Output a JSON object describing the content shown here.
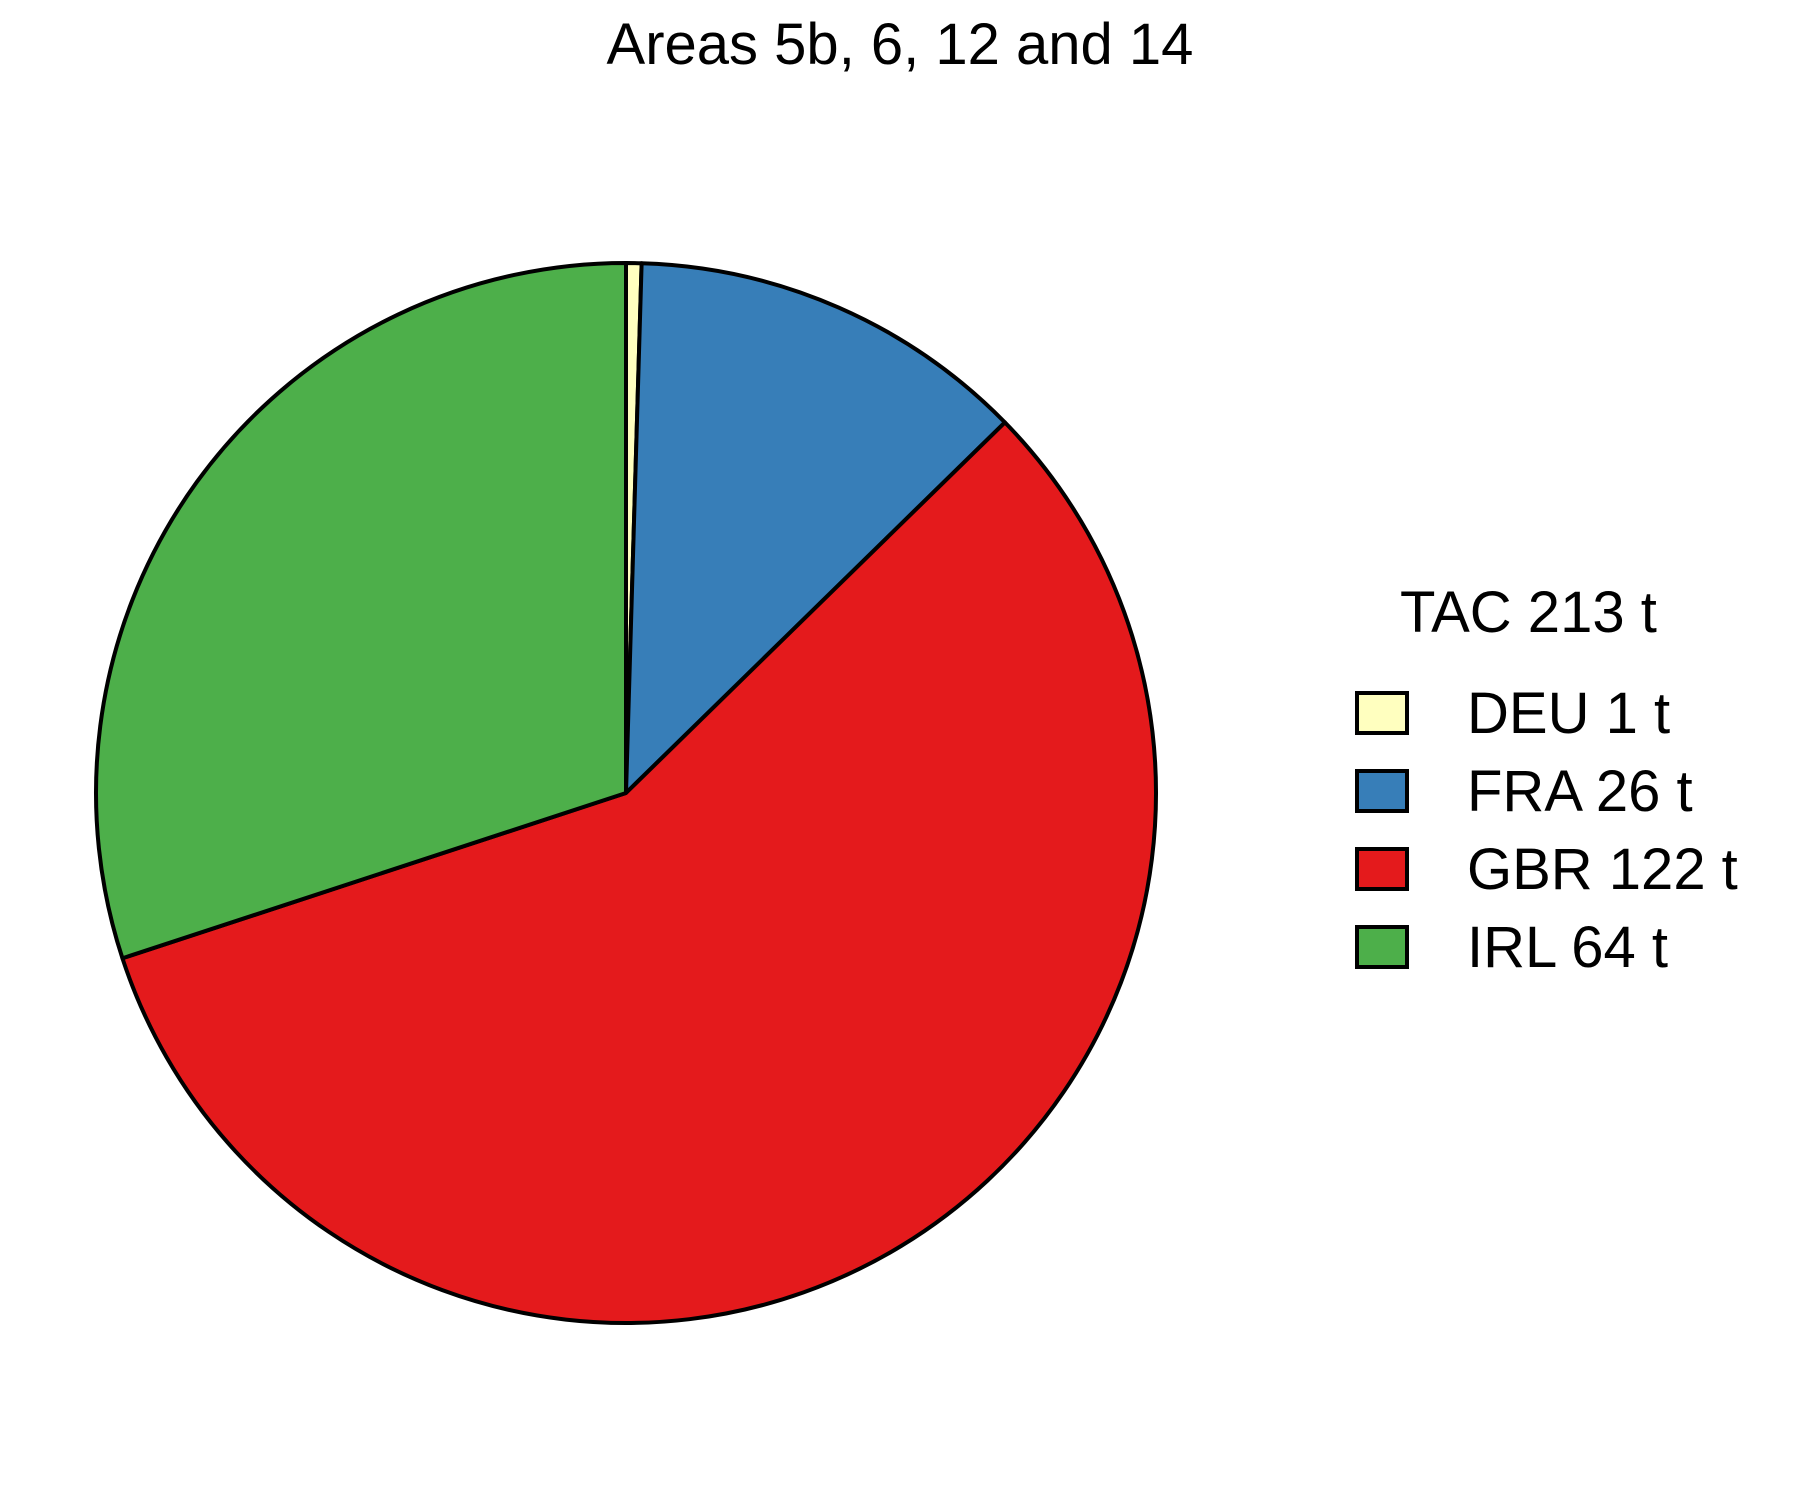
{
  "chart_data": {
    "type": "pie",
    "title": "Areas 5b, 6, 12 and 14",
    "legend_title": "TAC 213 t",
    "legend_position": "right",
    "direction": "clockwise from top",
    "slices": [
      {
        "label": "DEU 1 t",
        "category": "DEU",
        "value": 1,
        "color": "#FFFFBF"
      },
      {
        "label": "FRA 26 t",
        "category": "FRA",
        "value": 26,
        "color": "#377EB8"
      },
      {
        "label": "GBR 122 t",
        "category": "GBR",
        "value": 122,
        "color": "#E41A1C"
      },
      {
        "label": "IRL 64 t",
        "category": "IRL",
        "value": 64,
        "color": "#4DAF4A"
      }
    ]
  }
}
